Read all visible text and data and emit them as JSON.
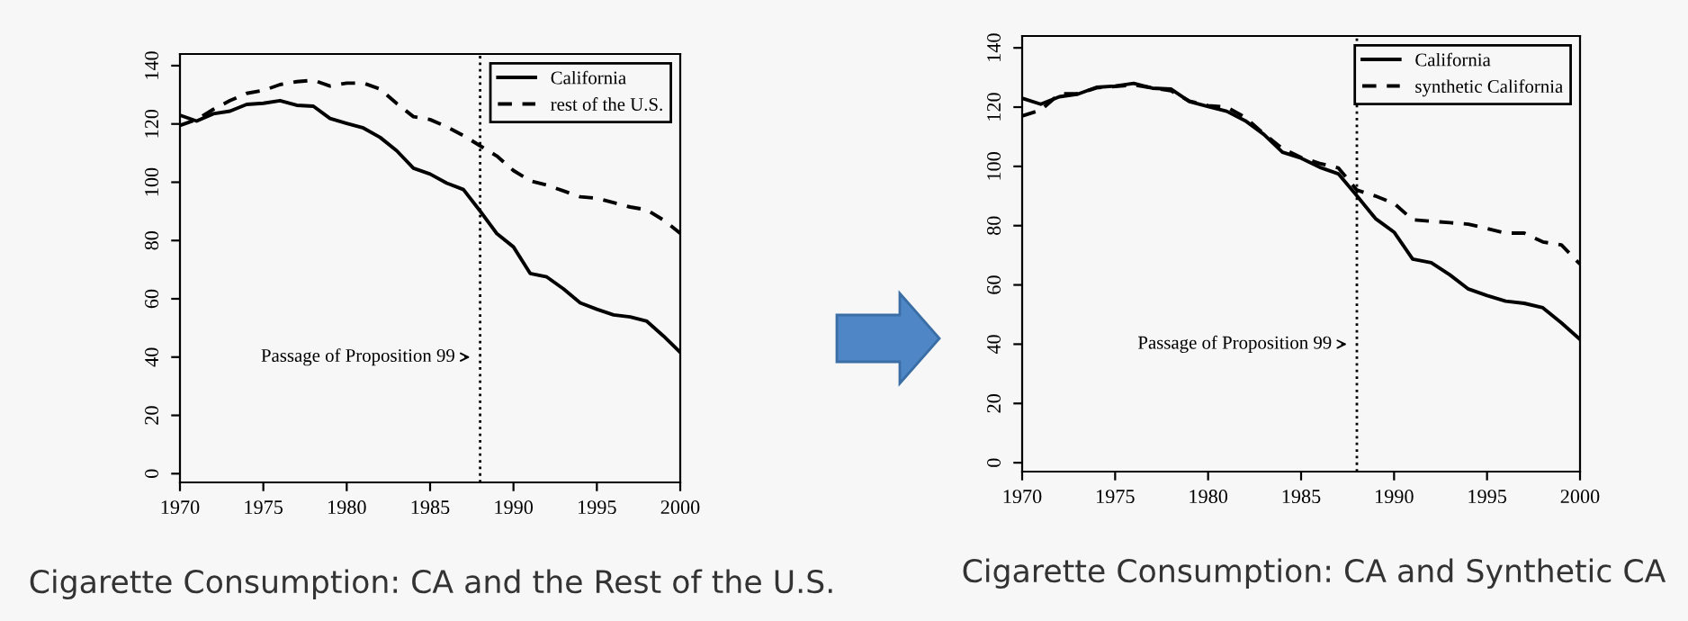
{
  "chart_data": [
    {
      "type": "line",
      "title": "Cigarette Consumption: CA and the Rest of the U.S.",
      "x": [
        1970,
        1971,
        1972,
        1973,
        1974,
        1975,
        1976,
        1977,
        1978,
        1979,
        1980,
        1981,
        1982,
        1983,
        1984,
        1985,
        1986,
        1987,
        1988,
        1989,
        1990,
        1991,
        1992,
        1993,
        1994,
        1995,
        1996,
        1997,
        1998,
        1999,
        2000
      ],
      "series": [
        {
          "name": "California",
          "color": "#000000",
          "line_style": "solid",
          "values": [
            123,
            121,
            123.5,
            124.4,
            126.7,
            127.1,
            128,
            126.4,
            126.1,
            121.9,
            120.2,
            118.6,
            115.4,
            110.8,
            104.8,
            102.8,
            99.7,
            97.5,
            90.1,
            82.4,
            77.8,
            68.7,
            67.5,
            63.4,
            58.6,
            56.4,
            54.5,
            53.8,
            52.3,
            47.2,
            41.6
          ]
        },
        {
          "name": "rest of the U.S.",
          "color": "#000000",
          "line_style": "dashed",
          "values": [
            119.5,
            121.5,
            125,
            128,
            130.5,
            131.5,
            133.5,
            134.5,
            135,
            133,
            134,
            134,
            132,
            127,
            122.5,
            121.5,
            119,
            116,
            112.5,
            109,
            104,
            100.5,
            99,
            97,
            95,
            94.5,
            93,
            91.5,
            90.5,
            87,
            82.5
          ]
        }
      ],
      "xlim": [
        1970,
        2000
      ],
      "xticks": [
        1970,
        1975,
        1980,
        1985,
        1990,
        1995,
        2000
      ],
      "ylim": [
        -3,
        144
      ],
      "yticks": [
        0,
        20,
        40,
        60,
        80,
        100,
        120,
        140
      ],
      "ref_lines": [
        {
          "axis": "x",
          "value": 1988,
          "line_style": "dotted",
          "color": "#000000"
        }
      ],
      "annotations": [
        {
          "text": "Passage of Proposition 99",
          "x": 1988,
          "y": 40
        }
      ],
      "legend": "top right",
      "grid": false
    },
    {
      "type": "line",
      "title": "Cigarette Consumption: CA and Synthetic CA",
      "x": [
        1970,
        1971,
        1972,
        1973,
        1974,
        1975,
        1976,
        1977,
        1978,
        1979,
        1980,
        1981,
        1982,
        1983,
        1984,
        1985,
        1986,
        1987,
        1988,
        1989,
        1990,
        1991,
        1992,
        1993,
        1994,
        1995,
        1996,
        1997,
        1998,
        1999,
        2000
      ],
      "series": [
        {
          "name": "California",
          "color": "#000000",
          "line_style": "solid",
          "values": [
            123,
            121,
            123.5,
            124.4,
            126.7,
            127.1,
            128,
            126.4,
            126.1,
            121.9,
            120.2,
            118.6,
            115.4,
            110.8,
            104.8,
            102.8,
            99.7,
            97.5,
            90.1,
            82.4,
            77.8,
            68.7,
            67.5,
            63.4,
            58.6,
            56.4,
            54.5,
            53.8,
            52.3,
            47.2,
            41.6
          ]
        },
        {
          "name": "synthetic California",
          "color": "#000000",
          "line_style": "dashed",
          "values": [
            117,
            119,
            124.5,
            124.5,
            126.5,
            127,
            127.5,
            126.5,
            125.5,
            122,
            120.5,
            120,
            116.5,
            111,
            106,
            103,
            101,
            99.5,
            92,
            90,
            87.5,
            82,
            81.5,
            81,
            80.5,
            79,
            77.5,
            77.5,
            74.5,
            73.5,
            67
          ]
        }
      ],
      "xlim": [
        1970,
        2000
      ],
      "xticks": [
        1970,
        1975,
        1980,
        1985,
        1990,
        1995,
        2000
      ],
      "ylim": [
        -3,
        144
      ],
      "yticks": [
        0,
        20,
        40,
        60,
        80,
        100,
        120,
        140
      ],
      "ref_lines": [
        {
          "axis": "x",
          "value": 1988,
          "line_style": "dotted",
          "color": "#000000"
        }
      ],
      "annotations": [
        {
          "text": "Passage of Proposition 99",
          "x": 1988,
          "y": 40
        }
      ],
      "legend": "top right",
      "grid": false
    }
  ]
}
